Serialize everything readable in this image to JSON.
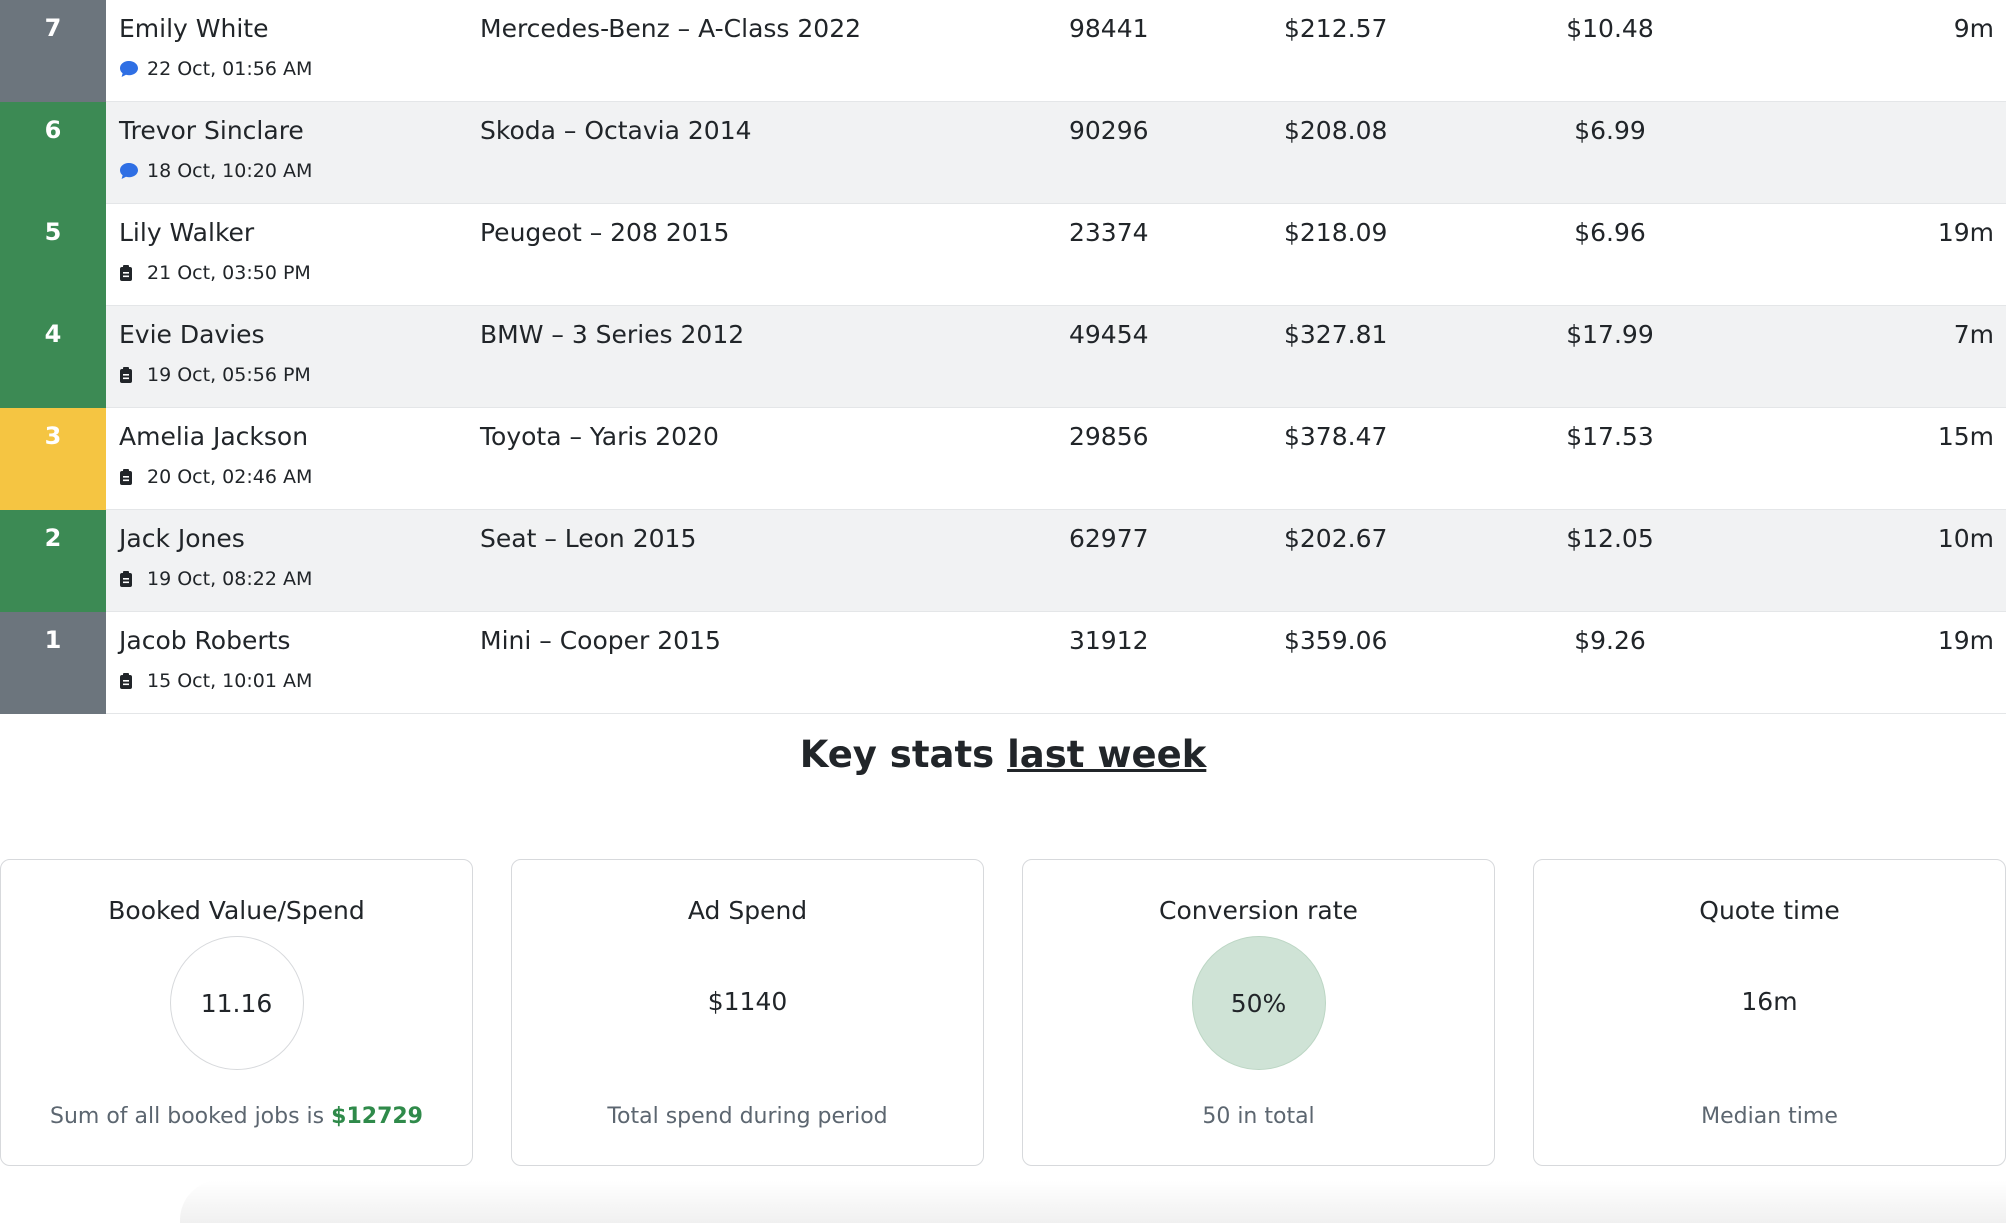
{
  "rows": [
    {
      "rank": "7",
      "color": "grey",
      "name": "Emily White",
      "icon": "chat-icon",
      "date": "22 Oct, 01:56 AM",
      "vehicle": "Mercedes-Benz – A-Class 2022",
      "miles": "98441",
      "value": "$212.57",
      "cost": "$10.48",
      "time": "9m"
    },
    {
      "rank": "6",
      "color": "green",
      "name": "Trevor Sinclare",
      "icon": "chat-icon",
      "date": "18 Oct, 10:20 AM",
      "vehicle": "Skoda – Octavia 2014",
      "miles": "90296",
      "value": "$208.08",
      "cost": "$6.99",
      "time": ""
    },
    {
      "rank": "5",
      "color": "green",
      "name": "Lily Walker",
      "icon": "clipboard-icon",
      "date": "21 Oct, 03:50 PM",
      "vehicle": "Peugeot – 208 2015",
      "miles": "23374",
      "value": "$218.09",
      "cost": "$6.96",
      "time": "19m"
    },
    {
      "rank": "4",
      "color": "green",
      "name": "Evie Davies",
      "icon": "clipboard-icon",
      "date": "19 Oct, 05:56 PM",
      "vehicle": "BMW – 3 Series 2012",
      "miles": "49454",
      "value": "$327.81",
      "cost": "$17.99",
      "time": "7m"
    },
    {
      "rank": "3",
      "color": "yellow",
      "name": "Amelia Jackson",
      "icon": "clipboard-icon",
      "date": "20 Oct, 02:46 AM",
      "vehicle": "Toyota – Yaris 2020",
      "miles": "29856",
      "value": "$378.47",
      "cost": "$17.53",
      "time": "15m"
    },
    {
      "rank": "2",
      "color": "green",
      "name": "Jack Jones",
      "icon": "clipboard-icon",
      "date": "19 Oct, 08:22 AM",
      "vehicle": "Seat – Leon 2015",
      "miles": "62977",
      "value": "$202.67",
      "cost": "$12.05",
      "time": "10m"
    },
    {
      "rank": "1",
      "color": "grey",
      "name": "Jacob Roberts",
      "icon": "clipboard-icon",
      "date": "15 Oct, 10:01 AM",
      "vehicle": "Mini – Cooper 2015",
      "miles": "31912",
      "value": "$359.06",
      "cost": "$9.26",
      "time": "19m"
    }
  ],
  "stats_heading": {
    "prefix": "Key stats",
    "period": "last week"
  },
  "cards": {
    "booked": {
      "title": "Booked Value/Spend",
      "value": "11.16",
      "foot_prefix": "Sum of all booked jobs is",
      "foot_value": "$12729"
    },
    "adspend": {
      "title": "Ad Spend",
      "value": "$1140",
      "foot": "Total spend during period"
    },
    "conversion": {
      "title": "Conversion rate",
      "value": "50%",
      "foot": "50 in total"
    },
    "quote": {
      "title": "Quote time",
      "value": "16m",
      "foot": "Median time"
    }
  },
  "colors": {
    "green": "#3c8a54",
    "grey": "#6c757d",
    "yellow": "#f5c542",
    "chat_icon": "#2f6fe4",
    "highlight": "#2f8a4a"
  }
}
